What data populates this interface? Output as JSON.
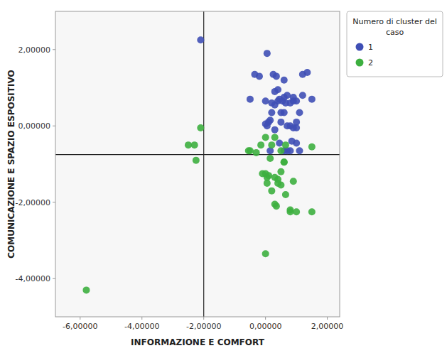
{
  "chart_data": {
    "type": "scatter",
    "xlabel": "INFORMAZIONE E COMFORT",
    "ylabel": "COMUNICAZIONE E SPAZIO ESPOSITIVO",
    "legend_title": "Numero di cluster del\ncaso",
    "legend": "right",
    "grid": false,
    "xlim": [
      -6.8,
      2.4
    ],
    "ylim": [
      -5.0,
      3.0
    ],
    "xticks": [
      {
        "value": -6.0,
        "label": "-6,00000"
      },
      {
        "value": -4.0,
        "label": "-4,00000"
      },
      {
        "value": -2.0,
        "label": "-2,00000"
      },
      {
        "value": 0.0,
        "label": "0,00000"
      },
      {
        "value": 2.0,
        "label": "2,00000"
      }
    ],
    "yticks": [
      {
        "value": -4.0,
        "label": "-4,00000"
      },
      {
        "value": -2.0,
        "label": "-2,00000"
      },
      {
        "value": 0.0,
        "label": "0,00000"
      },
      {
        "value": 2.0,
        "label": "2,00000"
      }
    ],
    "xline": -2.0,
    "yline": -0.75,
    "series": [
      {
        "name": "1",
        "color": "#3F4FB5",
        "x": [
          -2.1,
          0.05,
          -0.35,
          -0.2,
          -0.5,
          0.0,
          0.0,
          0.1,
          0.15,
          0.2,
          0.3,
          0.4,
          0.45,
          0.55,
          0.6,
          0.7,
          0.8,
          0.9,
          1.0,
          1.1,
          1.2,
          1.35,
          1.5,
          0.25,
          0.35,
          0.5,
          0.6,
          0.7,
          0.8,
          0.9,
          1.0,
          1.1,
          0.4,
          0.3,
          0.2,
          0.05,
          0.6,
          0.7,
          0.8,
          0.9,
          1.0,
          1.2,
          0.45,
          0.6,
          0.5,
          0.3,
          0.15,
          0.65,
          0.85,
          1.0
        ],
        "values": [
          2.25,
          1.9,
          1.35,
          1.3,
          0.7,
          0.65,
          0.05,
          0.1,
          0.15,
          0.6,
          0.55,
          0.65,
          0.7,
          0.65,
          0.75,
          0.8,
          0.6,
          0.65,
          0.65,
          0.35,
          1.35,
          1.4,
          0.7,
          1.35,
          1.3,
          0.35,
          0.35,
          0.0,
          0.0,
          -0.05,
          -0.05,
          -0.65,
          0.95,
          0.9,
          0.35,
          0.0,
          -0.65,
          -0.65,
          -0.65,
          0.75,
          0.1,
          0.8,
          -0.45,
          1.2,
          0.1,
          -0.1,
          -0.65,
          0.6,
          -0.4,
          -0.45
        ]
      },
      {
        "name": "2",
        "color": "#3DAF3F",
        "x": [
          -5.8,
          -2.5,
          -2.3,
          -2.25,
          -2.1,
          -0.55,
          -0.3,
          -0.15,
          -0.5,
          0.0,
          0.05,
          0.1,
          0.2,
          0.3,
          0.4,
          0.5,
          0.6,
          0.65,
          0.8,
          0.9,
          1.0,
          1.5,
          0.2,
          0.3,
          0.4,
          0.0,
          0.15,
          0.6,
          0.35,
          0.05,
          -0.1,
          0.5,
          0.65,
          0.0,
          0.5,
          1.5,
          0.8,
          0.3
        ],
        "values": [
          -4.3,
          -0.5,
          -0.5,
          -0.9,
          -0.05,
          -0.65,
          -0.7,
          -0.5,
          -0.65,
          -0.3,
          -1.35,
          -1.3,
          -1.7,
          -2.05,
          -1.4,
          -1.2,
          -0.95,
          -1.8,
          -2.2,
          -1.45,
          -2.25,
          -2.25,
          -0.5,
          -1.35,
          -1.5,
          -3.35,
          -0.85,
          -0.95,
          -2.1,
          -1.5,
          -1.25,
          -1.55,
          -0.5,
          -1.25,
          -0.65,
          -0.55,
          -2.25,
          -0.3
        ]
      }
    ]
  }
}
